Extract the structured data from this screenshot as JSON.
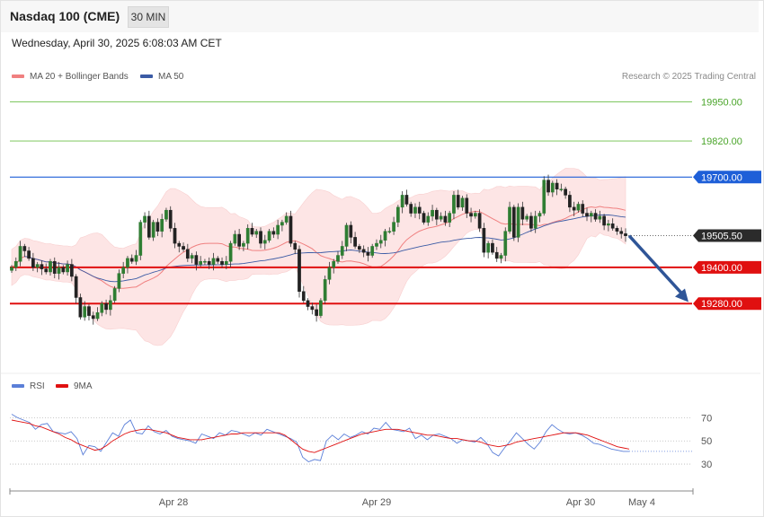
{
  "header": {
    "instrument": "Nasdaq 100 (CME)",
    "timeframe": "30 MIN",
    "datetime": "Wednesday, April 30, 2025 6:08:03 AM CET"
  },
  "legend": {
    "ma20_label": "MA 20 + Bollinger Bands",
    "ma50_label": "MA 50",
    "credit": "Research © 2025 Trading Central"
  },
  "rsi_legend": {
    "rsi_label": "RSI",
    "ma9_label": "9MA"
  },
  "colors": {
    "ma20": "#f08080",
    "ma50": "#3b5ba5",
    "bollinger_fill": "#fde3e3",
    "candle": "#2e7d32",
    "resistance_green": "#6cbf4a",
    "resistance_blue": "#1e5fd8",
    "support_red": "#e01010",
    "price_tag": "#2b2b2b",
    "arrow": "#2f5597",
    "rsi": "#5b7fd8",
    "rsi_ma": "#e01010"
  },
  "chart_data": [
    {
      "type": "candlestick",
      "title": "Nasdaq 100 (CME) 30 MIN",
      "ylim": [
        19060,
        19990
      ],
      "x_tick_labels": [
        "Apr 28",
        "Apr 29",
        "Apr 30",
        "May 4"
      ],
      "levels": [
        {
          "value": 19950.0,
          "label": "19950.00",
          "style": "green"
        },
        {
          "value": 19820.0,
          "label": "19820.00",
          "style": "green"
        },
        {
          "value": 19700.0,
          "label": "19700.00",
          "style": "blue"
        },
        {
          "value": 19505.5,
          "label": "19505.50",
          "style": "last"
        },
        {
          "value": 19400.0,
          "label": "19400.00",
          "style": "red"
        },
        {
          "value": 19280.0,
          "label": "19280.00",
          "style": "red"
        }
      ],
      "last_price": 19505.5,
      "projection": {
        "from": 19505,
        "to": 19285
      },
      "closes": [
        19400,
        19420,
        19470,
        19455,
        19430,
        19400,
        19410,
        19395,
        19385,
        19420,
        19380,
        19400,
        19385,
        19410,
        19370,
        19300,
        19235,
        19270,
        19240,
        19230,
        19250,
        19280,
        19260,
        19290,
        19330,
        19380,
        19400,
        19430,
        19420,
        19440,
        19550,
        19570,
        19500,
        19550,
        19520,
        19560,
        19590,
        19530,
        19480,
        19470,
        19460,
        19430,
        19440,
        19410,
        19420,
        19420,
        19410,
        19430,
        19420,
        19410,
        19420,
        19480,
        19510,
        19470,
        19480,
        19530,
        19510,
        19520,
        19480,
        19490,
        19520,
        19510,
        19540,
        19550,
        19570,
        19480,
        19460,
        19320,
        19290,
        19270,
        19260,
        19240,
        19290,
        19360,
        19400,
        19420,
        19440,
        19470,
        19540,
        19500,
        19470,
        19460,
        19450,
        19440,
        19470,
        19480,
        19490,
        19520,
        19520,
        19550,
        19600,
        19640,
        19610,
        19580,
        19600,
        19580,
        19550,
        19570,
        19590,
        19560,
        19570,
        19550,
        19580,
        19640,
        19600,
        19630,
        19580,
        19570,
        19580,
        19530,
        19450,
        19480,
        19450,
        19430,
        19440,
        19520,
        19600,
        19500,
        19600,
        19560,
        19570,
        19530,
        19570,
        19580,
        19690,
        19650,
        19680,
        19660,
        19660,
        19640,
        19600,
        19590,
        19610,
        19580,
        19570,
        19580,
        19560,
        19570,
        19540,
        19545,
        19530,
        19520,
        19512,
        19505
      ]
    },
    {
      "type": "line",
      "title": "RSI",
      "ylim": [
        20,
        85
      ],
      "y_tick_labels": [
        "70",
        "50",
        "30"
      ],
      "series": [
        {
          "name": "RSI",
          "values": [
            73,
            70,
            68,
            66,
            60,
            64,
            65,
            58,
            57,
            56,
            58,
            52,
            38,
            46,
            45,
            41,
            49,
            57,
            54,
            64,
            68,
            57,
            56,
            63,
            58,
            56,
            59,
            54,
            52,
            51,
            50,
            48,
            56,
            54,
            52,
            57,
            55,
            59,
            58,
            56,
            54,
            57,
            55,
            60,
            58,
            56,
            54,
            52,
            49,
            36,
            32,
            34,
            33,
            50,
            55,
            51,
            56,
            53,
            55,
            58,
            56,
            61,
            60,
            66,
            60,
            59,
            58,
            61,
            52,
            55,
            51,
            55,
            56,
            54,
            52,
            48,
            51,
            50,
            49,
            53,
            48,
            40,
            37,
            44,
            50,
            57,
            52,
            47,
            43,
            49,
            58,
            64,
            60,
            57,
            56,
            57,
            55,
            52,
            48,
            47,
            45,
            43,
            42,
            41,
            41
          ]
        },
        {
          "name": "9MA",
          "values": [
            68,
            67,
            66,
            65,
            63,
            62,
            60,
            58,
            56,
            53,
            51,
            48,
            46,
            44,
            42,
            43,
            46,
            50,
            53,
            56,
            58,
            59,
            60,
            60,
            59,
            58,
            57,
            55,
            53,
            52,
            51,
            51,
            51,
            52,
            53,
            54,
            55,
            56,
            56,
            57,
            57,
            57,
            57,
            57,
            57,
            57,
            55,
            51,
            47,
            43,
            41,
            40,
            42,
            44,
            46,
            48,
            50,
            52,
            54,
            56,
            57,
            58,
            59,
            60,
            60,
            60,
            59,
            58,
            57,
            56,
            55,
            55,
            54,
            53,
            52,
            52,
            51,
            50,
            50,
            49,
            47,
            46,
            45,
            46,
            47,
            49,
            50,
            51,
            52,
            53,
            54,
            55,
            56,
            57,
            57,
            57,
            56,
            55,
            53,
            51,
            49,
            47,
            45,
            44,
            43
          ]
        }
      ]
    }
  ]
}
